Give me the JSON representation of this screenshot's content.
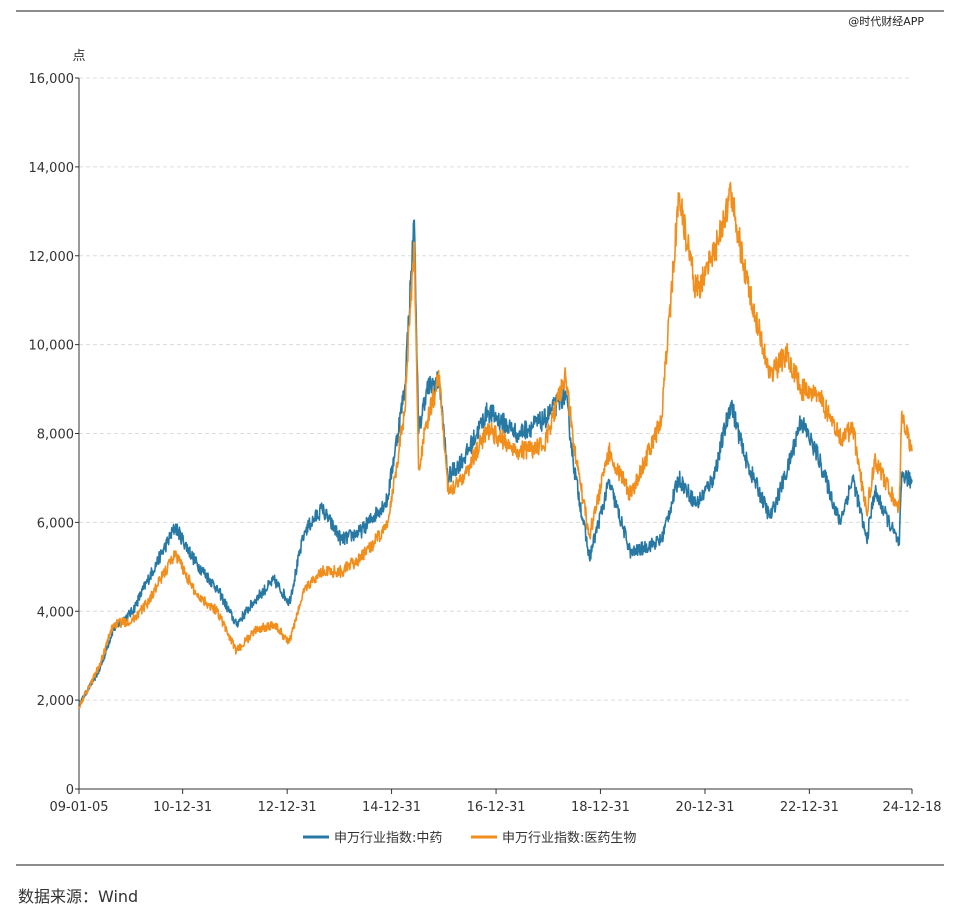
{
  "watermark": "@时代财经APP",
  "source": "数据来源：Wind",
  "chart_data": {
    "type": "line",
    "ylabel": "点",
    "ylim": [
      0,
      16000
    ],
    "yticks": [
      0,
      2000,
      4000,
      6000,
      8000,
      10000,
      12000,
      14000,
      16000
    ],
    "ytick_labels": [
      "0",
      "2,000",
      "4,000",
      "6,000",
      "8,000",
      "10,000",
      "12,000",
      "14,000",
      "16,000"
    ],
    "xlim": [
      "2009-01-05",
      "2024-12-18"
    ],
    "xticks": [
      "2009-01-05",
      "2010-12-31",
      "2012-12-31",
      "2014-12-31",
      "2016-12-31",
      "2018-12-31",
      "2020-12-31",
      "2022-12-31",
      "2024-12-18"
    ],
    "xtick_labels": [
      "09-01-05",
      "10-12-31",
      "12-12-31",
      "14-12-31",
      "16-12-31",
      "18-12-31",
      "20-12-31",
      "22-12-31",
      "24-12-18"
    ],
    "grid": "horizontal dashed",
    "legend_position": "bottom",
    "series": [
      {
        "name": "申万行业指数:中药",
        "color": "#2878a4",
        "points": [
          [
            "2009-01-05",
            1900
          ],
          [
            "2009-06-01",
            2700
          ],
          [
            "2009-09-01",
            3600
          ],
          [
            "2010-01-15",
            4000
          ],
          [
            "2010-05-01",
            4700
          ],
          [
            "2010-11-10",
            5900
          ],
          [
            "2011-04-01",
            5100
          ],
          [
            "2011-09-01",
            4500
          ],
          [
            "2012-01-10",
            3700
          ],
          [
            "2012-06-01",
            4300
          ],
          [
            "2012-10-01",
            4700
          ],
          [
            "2013-01-15",
            4200
          ],
          [
            "2013-05-01",
            5800
          ],
          [
            "2013-09-01",
            6300
          ],
          [
            "2014-01-15",
            5600
          ],
          [
            "2014-06-01",
            5800
          ],
          [
            "2014-12-01",
            6500
          ],
          [
            "2015-04-01",
            9000
          ],
          [
            "2015-06-08",
            12800
          ],
          [
            "2015-07-08",
            8000
          ],
          [
            "2015-09-01",
            9000
          ],
          [
            "2015-12-01",
            9200
          ],
          [
            "2016-01-28",
            7000
          ],
          [
            "2016-06-01",
            7500
          ],
          [
            "2016-11-01",
            8500
          ],
          [
            "2017-06-01",
            8000
          ],
          [
            "2017-12-01",
            8300
          ],
          [
            "2018-05-01",
            8900
          ],
          [
            "2018-07-01",
            7200
          ],
          [
            "2018-10-15",
            5200
          ],
          [
            "2019-03-01",
            6900
          ],
          [
            "2019-08-01",
            5300
          ],
          [
            "2020-03-01",
            5600
          ],
          [
            "2020-07-01",
            7000
          ],
          [
            "2020-11-01",
            6400
          ],
          [
            "2021-03-01",
            7000
          ],
          [
            "2021-07-01",
            8700
          ],
          [
            "2021-10-01",
            7500
          ],
          [
            "2022-04-01",
            6100
          ],
          [
            "2022-08-01",
            7200
          ],
          [
            "2022-11-01",
            8300
          ],
          [
            "2023-03-01",
            7500
          ],
          [
            "2023-08-01",
            6000
          ],
          [
            "2023-11-01",
            7000
          ],
          [
            "2024-02-05",
            5600
          ],
          [
            "2024-04-01",
            6700
          ],
          [
            "2024-09-20",
            5500
          ],
          [
            "2024-10-08",
            7100
          ],
          [
            "2024-12-18",
            6900
          ]
        ]
      },
      {
        "name": "申万行业指数:医药生物",
        "color": "#f18e1c",
        "points": [
          [
            "2009-01-05",
            1850
          ],
          [
            "2009-06-01",
            2800
          ],
          [
            "2009-09-01",
            3700
          ],
          [
            "2010-01-15",
            3800
          ],
          [
            "2010-05-01",
            4200
          ],
          [
            "2010-11-10",
            5300
          ],
          [
            "2011-04-01",
            4400
          ],
          [
            "2011-09-01",
            4000
          ],
          [
            "2012-01-10",
            3100
          ],
          [
            "2012-06-01",
            3600
          ],
          [
            "2012-10-01",
            3700
          ],
          [
            "2013-01-15",
            3300
          ],
          [
            "2013-05-01",
            4500
          ],
          [
            "2013-09-01",
            4900
          ],
          [
            "2014-01-15",
            4900
          ],
          [
            "2014-06-01",
            5200
          ],
          [
            "2014-12-01",
            5900
          ],
          [
            "2015-04-01",
            8500
          ],
          [
            "2015-06-08",
            12300
          ],
          [
            "2015-07-08",
            7200
          ],
          [
            "2015-09-01",
            8200
          ],
          [
            "2015-12-01",
            9300
          ],
          [
            "2016-01-28",
            6700
          ],
          [
            "2016-06-01",
            7100
          ],
          [
            "2016-11-01",
            8100
          ],
          [
            "2017-06-01",
            7600
          ],
          [
            "2017-12-01",
            7700
          ],
          [
            "2018-05-01",
            9300
          ],
          [
            "2018-07-01",
            7700
          ],
          [
            "2018-10-15",
            5700
          ],
          [
            "2019-03-01",
            7600
          ],
          [
            "2019-08-01",
            6600
          ],
          [
            "2020-03-01",
            8300
          ],
          [
            "2020-07-01",
            13300
          ],
          [
            "2020-11-01",
            11200
          ],
          [
            "2021-03-01",
            12000
          ],
          [
            "2021-07-01",
            13400
          ],
          [
            "2021-10-01",
            11700
          ],
          [
            "2022-04-01",
            9300
          ],
          [
            "2022-08-01",
            9800
          ],
          [
            "2022-11-01",
            9000
          ],
          [
            "2023-03-01",
            8900
          ],
          [
            "2023-08-01",
            7900
          ],
          [
            "2023-11-01",
            8100
          ],
          [
            "2024-02-05",
            6200
          ],
          [
            "2024-04-01",
            7400
          ],
          [
            "2024-09-20",
            6300
          ],
          [
            "2024-10-08",
            8500
          ],
          [
            "2024-12-18",
            7600
          ]
        ]
      }
    ]
  }
}
